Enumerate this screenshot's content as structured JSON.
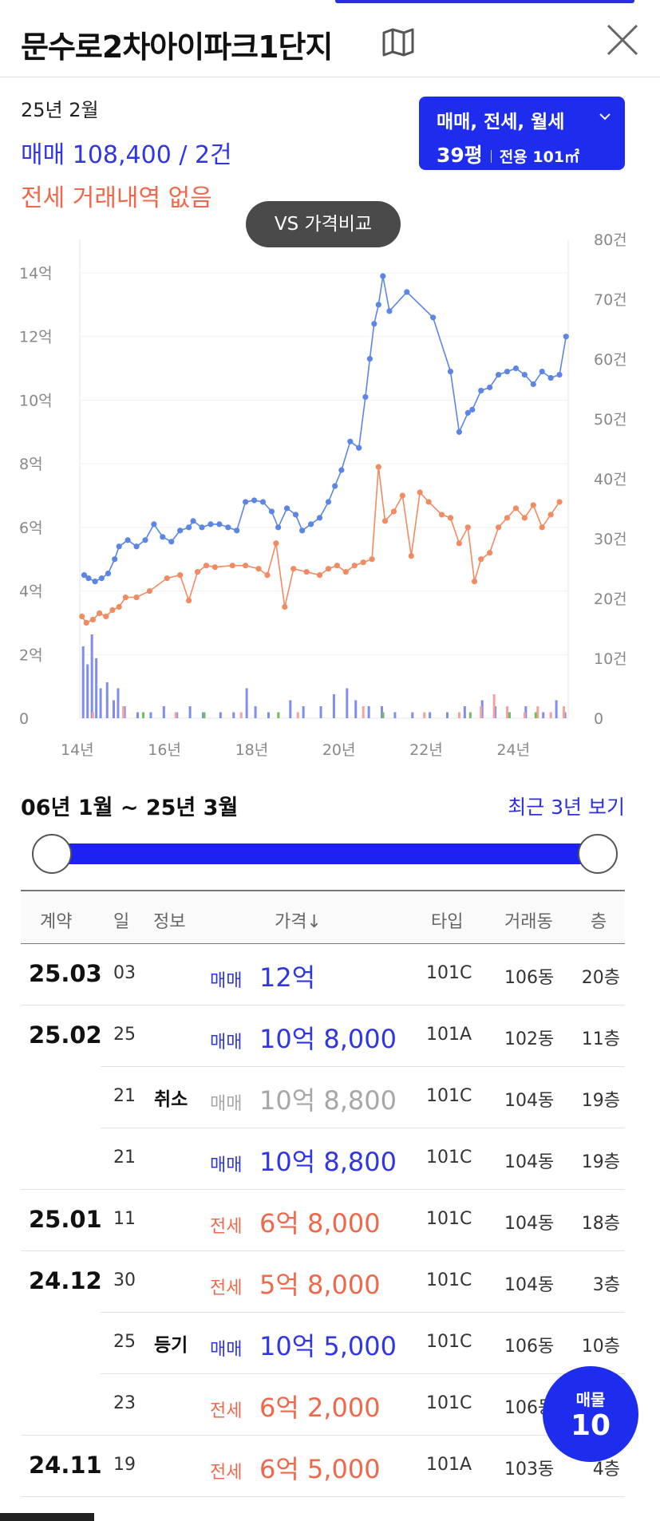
{
  "header": {
    "title": "문수로2차아이파크1단지",
    "map_icon": "map-icon",
    "close_icon": "close-icon"
  },
  "summary": {
    "date": "25년 2월",
    "sale_text": "매매 108,400 / 2건",
    "lease_text": "전세 거래내역 없음"
  },
  "filter": {
    "deal_types": "매매, 전세, 월세",
    "pyeong": "39평",
    "area": "전용 101㎡"
  },
  "compare_button": "VS 가격비교",
  "chart_data": {
    "type": "line",
    "y_left": {
      "ticks": [
        "14억",
        "12억",
        "10억",
        "8억",
        "6억",
        "4억",
        "2억",
        "0"
      ],
      "ylim_eok": [
        0,
        14
      ]
    },
    "y_right": {
      "ticks": [
        "80건",
        "70건",
        "60건",
        "50건",
        "40건",
        "30건",
        "20건",
        "10건",
        "0"
      ],
      "ylim_count": [
        0,
        80
      ]
    },
    "x_ticks": [
      "14년",
      "16년",
      "18년",
      "20년",
      "22년",
      "24년"
    ],
    "xlim_year": [
      2014,
      2025.2
    ],
    "colors": {
      "sale": "#5b86e5",
      "lease": "#f28a62",
      "bars_sale": "#7f8df0",
      "bars_lease": "#f4a1a1",
      "bars_green": "#6bbf5e"
    },
    "series": [
      {
        "key": "sale",
        "points": [
          [
            2014.1,
            4.5
          ],
          [
            2014.2,
            4.4
          ],
          [
            2014.35,
            4.3
          ],
          [
            2014.5,
            4.4
          ],
          [
            2014.65,
            4.55
          ],
          [
            2014.8,
            5.0
          ],
          [
            2014.9,
            5.4
          ],
          [
            2015.1,
            5.6
          ],
          [
            2015.3,
            5.4
          ],
          [
            2015.5,
            5.6
          ],
          [
            2015.7,
            6.1
          ],
          [
            2015.9,
            5.7
          ],
          [
            2016.1,
            5.55
          ],
          [
            2016.3,
            5.9
          ],
          [
            2016.5,
            6.0
          ],
          [
            2016.6,
            6.2
          ],
          [
            2016.8,
            6.0
          ],
          [
            2017.0,
            6.1
          ],
          [
            2017.2,
            6.1
          ],
          [
            2017.4,
            6.0
          ],
          [
            2017.6,
            5.9
          ],
          [
            2017.8,
            6.8
          ],
          [
            2018.0,
            6.85
          ],
          [
            2018.2,
            6.8
          ],
          [
            2018.4,
            6.5
          ],
          [
            2018.55,
            6.0
          ],
          [
            2018.75,
            6.6
          ],
          [
            2018.95,
            6.4
          ],
          [
            2019.1,
            5.9
          ],
          [
            2019.3,
            6.1
          ],
          [
            2019.5,
            6.3
          ],
          [
            2019.7,
            6.8
          ],
          [
            2019.85,
            7.3
          ],
          [
            2020.0,
            7.8
          ],
          [
            2020.2,
            8.7
          ],
          [
            2020.4,
            8.5
          ],
          [
            2020.55,
            10.1
          ],
          [
            2020.65,
            11.3
          ],
          [
            2020.75,
            12.4
          ],
          [
            2020.85,
            13.0
          ],
          [
            2020.95,
            13.9
          ],
          [
            2021.1,
            12.8
          ],
          [
            2021.5,
            13.4
          ],
          [
            2022.1,
            12.6
          ],
          [
            2022.5,
            10.9
          ],
          [
            2022.7,
            9.0
          ],
          [
            2022.9,
            9.6
          ],
          [
            2023.0,
            9.7
          ],
          [
            2023.2,
            10.3
          ],
          [
            2023.4,
            10.4
          ],
          [
            2023.6,
            10.8
          ],
          [
            2023.8,
            10.9
          ],
          [
            2024.0,
            11.0
          ],
          [
            2024.2,
            10.8
          ],
          [
            2024.4,
            10.5
          ],
          [
            2024.6,
            10.9
          ],
          [
            2024.8,
            10.7
          ],
          [
            2025.0,
            10.8
          ],
          [
            2025.15,
            12.0
          ]
        ]
      },
      {
        "key": "lease",
        "points": [
          [
            2014.05,
            3.2
          ],
          [
            2014.15,
            3.0
          ],
          [
            2014.3,
            3.1
          ],
          [
            2014.45,
            3.3
          ],
          [
            2014.6,
            3.2
          ],
          [
            2014.75,
            3.4
          ],
          [
            2014.9,
            3.5
          ],
          [
            2015.05,
            3.8
          ],
          [
            2015.3,
            3.8
          ],
          [
            2015.6,
            4.0
          ],
          [
            2016.0,
            4.4
          ],
          [
            2016.3,
            4.5
          ],
          [
            2016.5,
            3.7
          ],
          [
            2016.7,
            4.6
          ],
          [
            2016.9,
            4.8
          ],
          [
            2017.1,
            4.75
          ],
          [
            2017.5,
            4.8
          ],
          [
            2017.8,
            4.8
          ],
          [
            2018.1,
            4.7
          ],
          [
            2018.3,
            4.5
          ],
          [
            2018.5,
            5.5
          ],
          [
            2018.7,
            3.5
          ],
          [
            2018.9,
            4.7
          ],
          [
            2019.2,
            4.6
          ],
          [
            2019.5,
            4.5
          ],
          [
            2019.7,
            4.7
          ],
          [
            2019.9,
            4.8
          ],
          [
            2020.1,
            4.6
          ],
          [
            2020.3,
            4.8
          ],
          [
            2020.5,
            4.9
          ],
          [
            2020.7,
            5.0
          ],
          [
            2020.85,
            7.9
          ],
          [
            2021.0,
            6.2
          ],
          [
            2021.2,
            6.5
          ],
          [
            2021.4,
            7.0
          ],
          [
            2021.6,
            5.1
          ],
          [
            2021.8,
            7.1
          ],
          [
            2022.0,
            6.8
          ],
          [
            2022.3,
            6.4
          ],
          [
            2022.5,
            6.3
          ],
          [
            2022.7,
            5.5
          ],
          [
            2022.9,
            6.0
          ],
          [
            2023.05,
            4.3
          ],
          [
            2023.2,
            5.0
          ],
          [
            2023.4,
            5.2
          ],
          [
            2023.6,
            6.0
          ],
          [
            2023.8,
            6.3
          ],
          [
            2024.0,
            6.6
          ],
          [
            2024.2,
            6.3
          ],
          [
            2024.4,
            6.7
          ],
          [
            2024.6,
            6.0
          ],
          [
            2024.8,
            6.4
          ],
          [
            2025.0,
            6.8
          ]
        ]
      }
    ],
    "volume_bars": [
      [
        2014.05,
        12
      ],
      [
        2014.15,
        9
      ],
      [
        2014.25,
        14
      ],
      [
        2014.35,
        10
      ],
      [
        2014.45,
        5
      ],
      [
        2014.6,
        6
      ],
      [
        2014.75,
        3
      ],
      [
        2014.85,
        5
      ],
      [
        2015.0,
        2
      ],
      [
        2015.3,
        1
      ],
      [
        2015.6,
        1
      ],
      [
        2015.9,
        2
      ],
      [
        2016.2,
        1
      ],
      [
        2016.5,
        2
      ],
      [
        2016.8,
        1
      ],
      [
        2017.2,
        1
      ],
      [
        2017.5,
        1
      ],
      [
        2017.8,
        5
      ],
      [
        2018.0,
        2
      ],
      [
        2018.3,
        1
      ],
      [
        2018.8,
        3
      ],
      [
        2019.1,
        2
      ],
      [
        2019.5,
        2
      ],
      [
        2019.8,
        4
      ],
      [
        2020.1,
        5
      ],
      [
        2020.3,
        3
      ],
      [
        2020.6,
        2
      ],
      [
        2020.9,
        2
      ],
      [
        2021.2,
        1
      ],
      [
        2021.6,
        1
      ],
      [
        2022.0,
        1
      ],
      [
        2022.4,
        1
      ],
      [
        2022.8,
        2
      ],
      [
        2023.2,
        3
      ],
      [
        2023.5,
        2
      ],
      [
        2023.8,
        1
      ],
      [
        2024.2,
        2
      ],
      [
        2024.6,
        1
      ],
      [
        2024.9,
        3
      ],
      [
        2025.1,
        1
      ]
    ],
    "volume_bars_lease": [
      [
        2014.2,
        1
      ],
      [
        2014.9,
        2
      ],
      [
        2016.1,
        1
      ],
      [
        2017.6,
        1
      ],
      [
        2018.9,
        1
      ],
      [
        2020.4,
        2
      ],
      [
        2021.8,
        1
      ],
      [
        2022.6,
        1
      ],
      [
        2023.1,
        2
      ],
      [
        2023.4,
        4
      ],
      [
        2023.7,
        2
      ],
      [
        2024.1,
        1
      ],
      [
        2024.4,
        2
      ],
      [
        2024.7,
        1
      ],
      [
        2025.0,
        2
      ]
    ],
    "volume_bars_green": [
      [
        2015.5,
        1
      ],
      [
        2016.9,
        1
      ],
      [
        2018.6,
        1
      ],
      [
        2021.0,
        1
      ],
      [
        2023.0,
        1
      ],
      [
        2023.9,
        1
      ],
      [
        2024.5,
        1
      ]
    ]
  },
  "range": {
    "label": "06년 1월 ~ 25년 3월",
    "recent_link": "최근 3년 보기",
    "start_fraction": 0.0,
    "end_fraction": 1.0
  },
  "table": {
    "headers": {
      "contract": "계약",
      "day": "일",
      "info": "정보",
      "price": "가격↓",
      "type": "타입",
      "dong": "거래동",
      "floor": "층"
    },
    "rows": [
      {
        "month": "25.03",
        "day": "03",
        "info": "",
        "kind": "매매",
        "price": "12억",
        "type": "101C",
        "dong": "106동",
        "floor": "20층",
        "style": "sale",
        "first": true
      },
      {
        "month": "25.02",
        "day": "25",
        "info": "",
        "kind": "매매",
        "price": "10억 8,000",
        "type": "101A",
        "dong": "102동",
        "floor": "11층",
        "style": "sale",
        "first": true
      },
      {
        "month": "",
        "day": "21",
        "info": "취소",
        "kind": "매매",
        "price": "10억 8,800",
        "type": "101C",
        "dong": "104동",
        "floor": "19층",
        "style": "cancel",
        "first": false
      },
      {
        "month": "",
        "day": "21",
        "info": "",
        "kind": "매매",
        "price": "10억 8,800",
        "type": "101C",
        "dong": "104동",
        "floor": "19층",
        "style": "sale",
        "first": false
      },
      {
        "month": "25.01",
        "day": "11",
        "info": "",
        "kind": "전세",
        "price": "6억 8,000",
        "type": "101C",
        "dong": "104동",
        "floor": "18층",
        "style": "lease",
        "first": true
      },
      {
        "month": "24.12",
        "day": "30",
        "info": "",
        "kind": "전세",
        "price": "5억 8,000",
        "type": "101C",
        "dong": "104동",
        "floor": "3층",
        "style": "lease",
        "first": true
      },
      {
        "month": "",
        "day": "25",
        "info": "등기",
        "kind": "매매",
        "price": "10억 5,000",
        "type": "101C",
        "dong": "106동",
        "floor": "10층",
        "style": "sale",
        "first": false
      },
      {
        "month": "",
        "day": "23",
        "info": "",
        "kind": "전세",
        "price": "6억 2,000",
        "type": "101C",
        "dong": "106동",
        "floor": "",
        "style": "lease",
        "first": false
      },
      {
        "month": "24.11",
        "day": "19",
        "info": "",
        "kind": "전세",
        "price": "6억 5,000",
        "type": "101A",
        "dong": "103동",
        "floor": "4층",
        "style": "lease",
        "first": true
      }
    ]
  },
  "listing_fab": {
    "label": "매물",
    "count": "10"
  }
}
